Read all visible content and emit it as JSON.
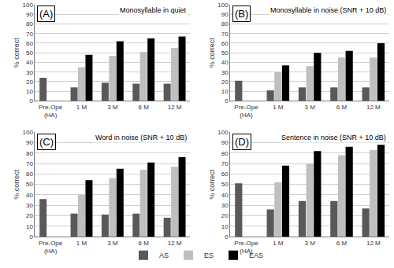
{
  "chart_data": [
    {
      "type": "bar",
      "title": "Monosyllable in quiet",
      "annotations": [
        "(A)"
      ],
      "y_label": "% correct",
      "categories": [
        "Pre-Ope (HA)",
        "1 M",
        "3 M",
        "6 M",
        "12 M"
      ],
      "series": [
        {
          "name": "AS",
          "color": "#595959",
          "values": [
            24,
            14,
            19,
            18,
            18
          ]
        },
        {
          "name": "ES",
          "color": "#bfbfbf",
          "values": [
            null,
            35,
            47,
            51,
            55
          ]
        },
        {
          "name": "EAS",
          "color": "#000000",
          "values": [
            null,
            48,
            62,
            65,
            67
          ]
        }
      ],
      "ylim": [
        0,
        100
      ],
      "yticks": [
        0,
        10,
        20,
        30,
        40,
        50,
        60,
        70,
        80,
        90,
        100
      ],
      "grid": true,
      "legend": "bottom"
    },
    {
      "type": "bar",
      "title": "Monosyllable in noise (SNR + 10 dB)",
      "annotations": [
        "(B)"
      ],
      "y_label": "% correct",
      "categories": [
        "Pre-Ope (HA)",
        "1 M",
        "3 M",
        "6 M",
        "12 M"
      ],
      "series": [
        {
          "name": "AS",
          "color": "#595959",
          "values": [
            21,
            11,
            14,
            14,
            14
          ]
        },
        {
          "name": "ES",
          "color": "#bfbfbf",
          "values": [
            null,
            30,
            36,
            45,
            45
          ]
        },
        {
          "name": "EAS",
          "color": "#000000",
          "values": [
            null,
            37,
            50,
            52,
            60
          ]
        }
      ],
      "ylim": [
        0,
        100
      ],
      "yticks": [
        0,
        10,
        20,
        30,
        40,
        50,
        60,
        70,
        80,
        90,
        100
      ],
      "grid": true
    },
    {
      "type": "bar",
      "title": "Word in noise (SNR + 10 dB)",
      "annotations": [
        "(C)"
      ],
      "y_label": "% correct",
      "categories": [
        "Pre-Ope (HA)",
        "1 M",
        "3 M",
        "6 M",
        "12 M"
      ],
      "series": [
        {
          "name": "AS",
          "color": "#595959",
          "values": [
            36,
            22,
            21,
            22,
            18
          ]
        },
        {
          "name": "ES",
          "color": "#bfbfbf",
          "values": [
            null,
            40,
            56,
            64,
            67
          ]
        },
        {
          "name": "EAS",
          "color": "#000000",
          "values": [
            null,
            54,
            65,
            71,
            76
          ]
        }
      ],
      "ylim": [
        0,
        100
      ],
      "yticks": [
        0,
        10,
        20,
        30,
        40,
        50,
        60,
        70,
        80,
        90,
        100
      ],
      "grid": true
    },
    {
      "type": "bar",
      "title": "Sentence in noise (SNR + 10 dB)",
      "annotations": [
        "(D)"
      ],
      "y_label": "% correct",
      "categories": [
        "Pre-Ope (HA)",
        "1 M",
        "3 M",
        "6 M",
        "12 M"
      ],
      "series": [
        {
          "name": "AS",
          "color": "#595959",
          "values": [
            51,
            26,
            34,
            34,
            27
          ]
        },
        {
          "name": "ES",
          "color": "#bfbfbf",
          "values": [
            null,
            52,
            70,
            78,
            83
          ]
        },
        {
          "name": "EAS",
          "color": "#000000",
          "values": [
            null,
            68,
            82,
            86,
            88
          ]
        }
      ],
      "ylim": [
        0,
        100
      ],
      "yticks": [
        0,
        10,
        20,
        30,
        40,
        50,
        60,
        70,
        80,
        90,
        100
      ],
      "grid": true
    }
  ]
}
